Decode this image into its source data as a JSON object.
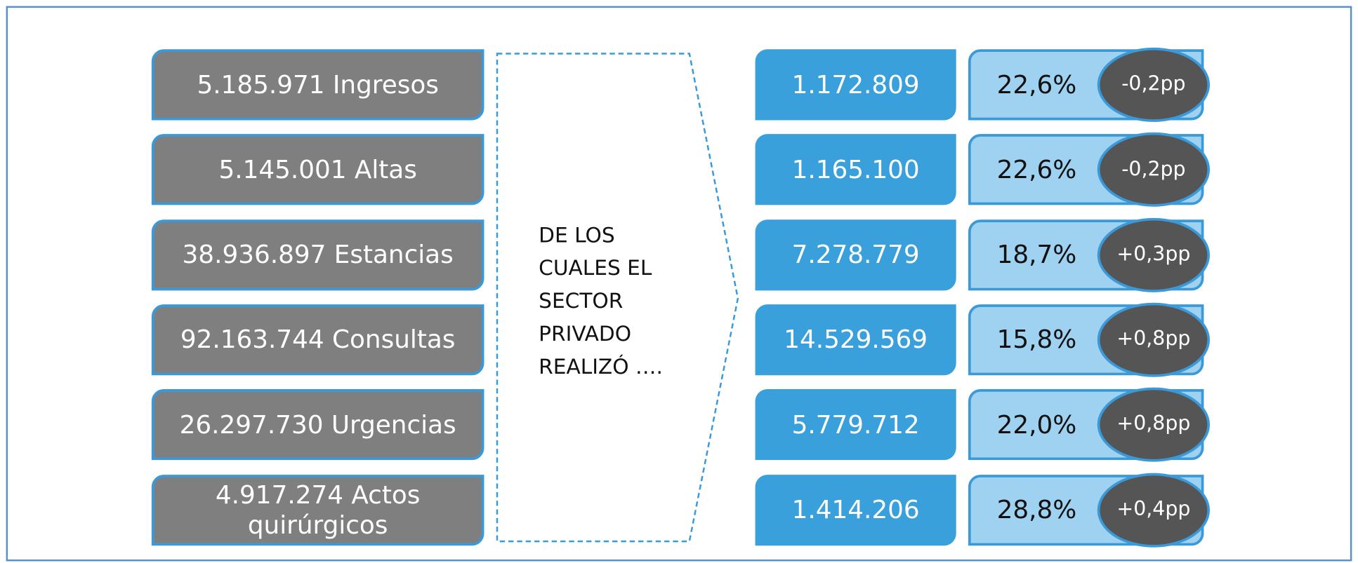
{
  "rows": [
    {
      "label": "5.185.971 Ingresos",
      "private": "1.172.809",
      "share": "22,6%",
      "change": "-0,2pp"
    },
    {
      "label": "5.145.001 Altas",
      "private": "1.165.100",
      "share": "22,6%",
      "change": "-0,2pp"
    },
    {
      "label": "38.936.897 Estancias",
      "private": "7.278.779",
      "share": "18,7%",
      "change": "+0,3pp"
    },
    {
      "label": "92.163.744 Consultas",
      "private": "14.529.569",
      "share": "15,8%",
      "change": "+0,8pp"
    },
    {
      "label": "26.297.730 Urgencias",
      "private": "5.779.712",
      "share": "22,0%",
      "change": "+0,8pp"
    },
    {
      "label": "4.917.274 Actos quirúrgicos",
      "private": "1.414.206",
      "share": "28,8%",
      "change": "+0,4pp"
    }
  ],
  "middle_text": "DE LOS CUALES EL SECTOR PRIVADO REALIZÓ …."
}
